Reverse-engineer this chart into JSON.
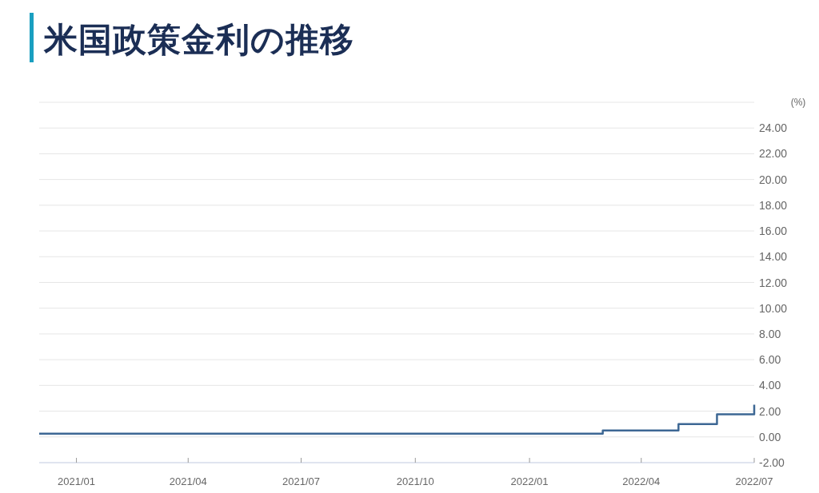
{
  "chart_data": {
    "type": "step",
    "title": "米国政策金利の推移",
    "ylabel": "(%)",
    "x": [
      "2020-12-02",
      "2022-03-01",
      "2022-05-01",
      "2022-06-01",
      "2022-07-01"
    ],
    "values": [
      0.25,
      0.5,
      1.0,
      1.75,
      2.5
    ],
    "color": "#3d6794",
    "xlim": [
      "2020-12-02",
      "2022-07-01"
    ],
    "ylim": [
      -2,
      26
    ],
    "xticks": [
      {
        "value": "2021-01",
        "label": "2021/01"
      },
      {
        "value": "2021-04",
        "label": "2021/04"
      },
      {
        "value": "2021-07",
        "label": "2021/07"
      },
      {
        "value": "2021-10",
        "label": "2021/10"
      },
      {
        "value": "2022-01",
        "label": "2022/01"
      },
      {
        "value": "2022-04",
        "label": "2022/04"
      },
      {
        "value": "2022-07",
        "label": "2022/07"
      }
    ],
    "yticks": [
      {
        "value": -2,
        "label": "-2.00"
      },
      {
        "value": 0,
        "label": "0.00"
      },
      {
        "value": 2,
        "label": "2.00"
      },
      {
        "value": 4,
        "label": "4.00"
      },
      {
        "value": 6,
        "label": "6.00"
      },
      {
        "value": 8,
        "label": "8.00"
      },
      {
        "value": 10,
        "label": "10.00"
      },
      {
        "value": 12,
        "label": "12.00"
      },
      {
        "value": 14,
        "label": "14.00"
      },
      {
        "value": 16,
        "label": "16.00"
      },
      {
        "value": 18,
        "label": "18.00"
      },
      {
        "value": 20,
        "label": "20.00"
      },
      {
        "value": 22,
        "label": "22.00"
      },
      {
        "value": 24,
        "label": "24.00"
      },
      {
        "value": 26,
        "label": null
      }
    ],
    "grid": "y",
    "line_style": "solid"
  }
}
